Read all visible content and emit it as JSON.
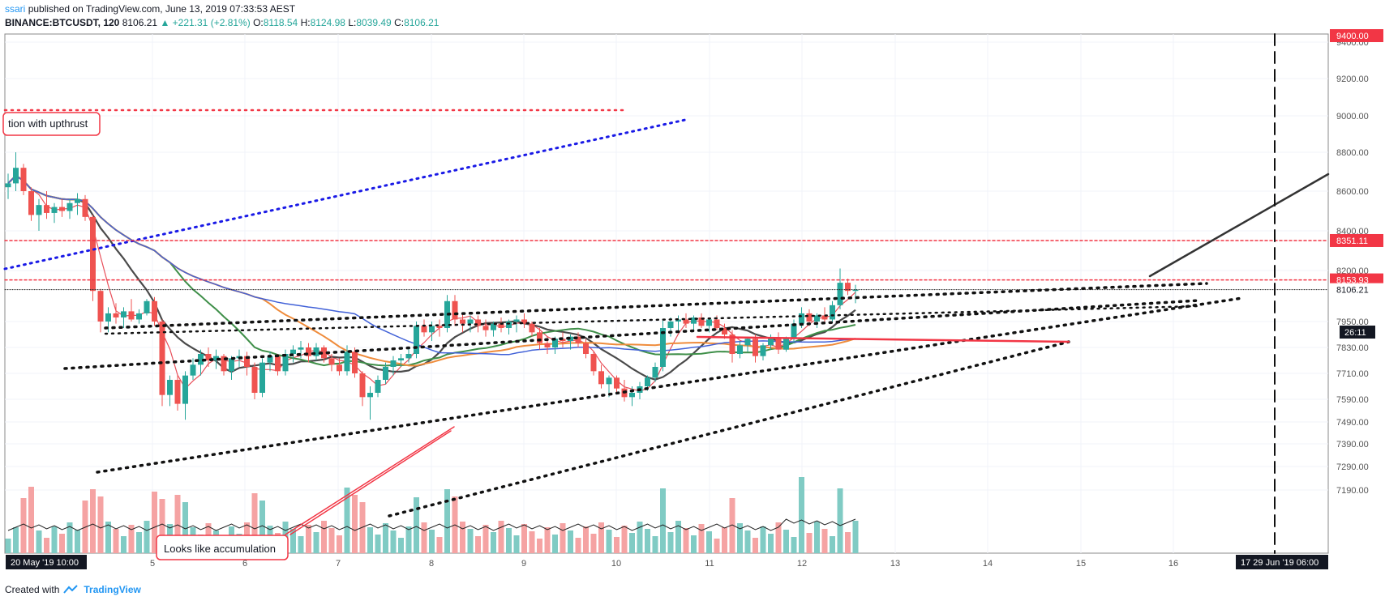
{
  "header": {
    "author": "ssari",
    "published_text": "published on TradingView.com, June 13, 2019 07:33:53 AEST",
    "symbol": "BINANCE:BTCUSDT, 120",
    "last": "8106.21",
    "change": "▲ +221.31 (+2.81%)",
    "o_label": "O:",
    "o_value": "8118.54",
    "h_label": "H:",
    "h_value": "8124.98",
    "l_label": "L:",
    "l_value": "8039.49",
    "c_label": "C:",
    "c_value": "8106.21"
  },
  "footer": {
    "created_with": "Created with",
    "brand": "TradingView"
  },
  "annotations": {
    "upthrust": "tion with upthrust",
    "accumulation": "Looks like accumulation"
  },
  "price_badges": {
    "top_red": "9400.00",
    "resistance": "8351.11",
    "upper": "8153.93",
    "last": "8106.21",
    "countdown": "26:11"
  },
  "time_badges": {
    "left": "20 May '19   10:00",
    "right": "17  29 Jun '19   06:00"
  },
  "colors": {
    "up": "#26a69a",
    "down": "#ef5350",
    "up_vol": "#80cbc4",
    "down_vol": "#f5a3a3",
    "red_line": "#f23645",
    "blue_dotted": "#1a1ae6",
    "ema_orange": "#ef8c3c",
    "ema_green": "#3f8f49",
    "ema_blue": "#4262d8",
    "ema_dark": "#4a4a4a",
    "ema_red": "#e8505b"
  },
  "chart_data": {
    "type": "candlestick",
    "title": "BINANCE:BTCUSDT, 120",
    "y_ticks": [
      9400,
      9200,
      9000,
      8800,
      8600,
      8400,
      8200,
      7950,
      7830,
      7710,
      7590,
      7490,
      7390,
      7290,
      7190
    ],
    "x_ticks": [
      "5",
      "6",
      "7",
      "8",
      "9",
      "10",
      "11",
      "12",
      "13",
      "14",
      "15",
      "16"
    ],
    "grid": true,
    "series": [
      {
        "name": "BTCUSDT",
        "kind": "candles",
        "values": [
          [
            8620,
            8690,
            8560,
            8640
          ],
          [
            8640,
            8800,
            8600,
            8720
          ],
          [
            8720,
            8740,
            8580,
            8600
          ],
          [
            8600,
            8620,
            8450,
            8480
          ],
          [
            8480,
            8560,
            8400,
            8530
          ],
          [
            8530,
            8600,
            8460,
            8490
          ],
          [
            8490,
            8540,
            8440,
            8520
          ],
          [
            8520,
            8560,
            8470,
            8500
          ],
          [
            8500,
            8560,
            8460,
            8540
          ],
          [
            8540,
            8590,
            8480,
            8560
          ],
          [
            8560,
            8580,
            8450,
            8470
          ],
          [
            8470,
            8480,
            8050,
            8100
          ],
          [
            8100,
            8110,
            7900,
            7950
          ],
          [
            7950,
            8020,
            7900,
            7990
          ],
          [
            7990,
            8040,
            7940,
            7970
          ],
          [
            7970,
            8020,
            7920,
            8000
          ],
          [
            8000,
            8060,
            7950,
            7960
          ],
          [
            7960,
            8010,
            7940,
            7990
          ],
          [
            7990,
            8060,
            7980,
            8050
          ],
          [
            8050,
            8070,
            7930,
            7950
          ],
          [
            7950,
            7960,
            7560,
            7610
          ],
          [
            7610,
            7700,
            7560,
            7680
          ],
          [
            7680,
            7700,
            7540,
            7570
          ],
          [
            7570,
            7720,
            7500,
            7700
          ],
          [
            7700,
            7780,
            7680,
            7750
          ],
          [
            7750,
            7820,
            7700,
            7800
          ],
          [
            7800,
            7830,
            7740,
            7770
          ],
          [
            7770,
            7820,
            7730,
            7790
          ],
          [
            7790,
            7800,
            7700,
            7720
          ],
          [
            7720,
            7790,
            7680,
            7780
          ],
          [
            7780,
            7820,
            7740,
            7790
          ],
          [
            7790,
            7810,
            7700,
            7740
          ],
          [
            7740,
            7760,
            7590,
            7620
          ],
          [
            7620,
            7780,
            7600,
            7760
          ],
          [
            7760,
            7810,
            7720,
            7790
          ],
          [
            7790,
            7800,
            7700,
            7720
          ],
          [
            7720,
            7820,
            7700,
            7800
          ],
          [
            7800,
            7840,
            7760,
            7820
          ],
          [
            7820,
            7860,
            7780,
            7830
          ],
          [
            7830,
            7850,
            7760,
            7790
          ],
          [
            7790,
            7850,
            7770,
            7830
          ],
          [
            7830,
            7840,
            7760,
            7780
          ],
          [
            7780,
            7800,
            7720,
            7750
          ],
          [
            7750,
            7780,
            7700,
            7720
          ],
          [
            7720,
            7840,
            7700,
            7810
          ],
          [
            7810,
            7830,
            7690,
            7710
          ],
          [
            7710,
            7720,
            7560,
            7600
          ],
          [
            7600,
            7650,
            7500,
            7620
          ],
          [
            7620,
            7700,
            7600,
            7680
          ],
          [
            7680,
            7760,
            7660,
            7740
          ],
          [
            7740,
            7790,
            7700,
            7770
          ],
          [
            7770,
            7800,
            7740,
            7780
          ],
          [
            7780,
            7830,
            7760,
            7800
          ],
          [
            7800,
            7950,
            7780,
            7930
          ],
          [
            7930,
            7960,
            7880,
            7900
          ],
          [
            7900,
            7950,
            7860,
            7930
          ],
          [
            7930,
            7960,
            7880,
            7920
          ],
          [
            7920,
            8080,
            7900,
            8050
          ],
          [
            8050,
            8080,
            7930,
            7960
          ],
          [
            7960,
            7990,
            7900,
            7940
          ],
          [
            7940,
            7980,
            7900,
            7960
          ],
          [
            7960,
            7980,
            7900,
            7930
          ],
          [
            7930,
            7960,
            7880,
            7910
          ],
          [
            7910,
            7950,
            7880,
            7940
          ],
          [
            7940,
            7970,
            7900,
            7920
          ],
          [
            7920,
            7960,
            7890,
            7950
          ],
          [
            7950,
            7980,
            7900,
            7960
          ],
          [
            7960,
            7990,
            7920,
            7940
          ],
          [
            7940,
            7950,
            7880,
            7900
          ],
          [
            7900,
            7920,
            7820,
            7850
          ],
          [
            7850,
            7880,
            7800,
            7830
          ],
          [
            7830,
            7880,
            7800,
            7870
          ],
          [
            7870,
            7900,
            7830,
            7860
          ],
          [
            7860,
            7890,
            7820,
            7880
          ],
          [
            7880,
            7900,
            7830,
            7850
          ],
          [
            7850,
            7870,
            7780,
            7800
          ],
          [
            7800,
            7810,
            7700,
            7720
          ],
          [
            7720,
            7750,
            7640,
            7660
          ],
          [
            7660,
            7700,
            7600,
            7690
          ],
          [
            7690,
            7700,
            7620,
            7640
          ],
          [
            7640,
            7680,
            7580,
            7600
          ],
          [
            7600,
            7650,
            7560,
            7620
          ],
          [
            7620,
            7670,
            7590,
            7650
          ],
          [
            7650,
            7700,
            7630,
            7690
          ],
          [
            7690,
            7760,
            7670,
            7740
          ],
          [
            7740,
            7960,
            7720,
            7920
          ],
          [
            7920,
            7970,
            7880,
            7950
          ],
          [
            7950,
            7980,
            7900,
            7960
          ],
          [
            7960,
            7990,
            7920,
            7940
          ],
          [
            7940,
            7980,
            7910,
            7970
          ],
          [
            7970,
            7990,
            7920,
            7930
          ],
          [
            7930,
            7970,
            7900,
            7960
          ],
          [
            7960,
            7980,
            7910,
            7920
          ],
          [
            7920,
            7940,
            7870,
            7890
          ],
          [
            7890,
            7910,
            7760,
            7800
          ],
          [
            7800,
            7860,
            7780,
            7840
          ],
          [
            7840,
            7880,
            7810,
            7870
          ],
          [
            7870,
            7890,
            7760,
            7790
          ],
          [
            7790,
            7850,
            7770,
            7840
          ],
          [
            7840,
            7890,
            7820,
            7870
          ],
          [
            7870,
            7900,
            7800,
            7820
          ],
          [
            7820,
            7880,
            7810,
            7870
          ],
          [
            7870,
            7960,
            7850,
            7940
          ],
          [
            7940,
            8020,
            7920,
            7990
          ],
          [
            7990,
            8010,
            7930,
            7950
          ],
          [
            7950,
            7990,
            7920,
            7980
          ],
          [
            7980,
            8020,
            7940,
            7960
          ],
          [
            7960,
            8050,
            7950,
            8030
          ],
          [
            8030,
            8210,
            8010,
            8140
          ],
          [
            8140,
            8160,
            8080,
            8100
          ],
          [
            8100,
            8130,
            8040,
            8106
          ]
        ]
      }
    ],
    "levels": [
      8351.11,
      8153.93,
      8106.21
    ]
  }
}
